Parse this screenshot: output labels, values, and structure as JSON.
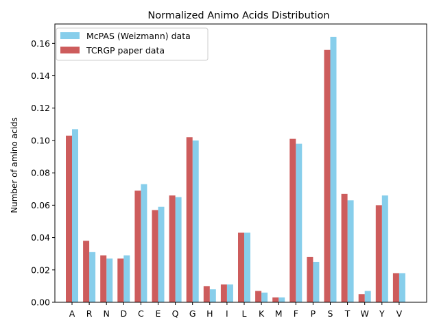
{
  "chart_data": {
    "type": "bar",
    "title": "Normalized Animo Acids Distribution",
    "xlabel": "",
    "ylabel": "Number of amino acids",
    "ylim": [
      0,
      0.172
    ],
    "yticks": [
      0.0,
      0.02,
      0.04,
      0.06,
      0.08,
      0.1,
      0.12,
      0.14,
      0.16
    ],
    "ytick_labels": [
      "0.00",
      "0.02",
      "0.04",
      "0.06",
      "0.08",
      "0.10",
      "0.12",
      "0.14",
      "0.16"
    ],
    "grid": false,
    "legend_position": "top-left",
    "categories": [
      "A",
      "R",
      "N",
      "D",
      "C",
      "E",
      "Q",
      "G",
      "H",
      "I",
      "L",
      "K",
      "M",
      "F",
      "P",
      "S",
      "T",
      "W",
      "Y",
      "V"
    ],
    "series": [
      {
        "name": "McPAS (Weizmann) data",
        "color": "#87ceeb",
        "values": [
          0.107,
          0.031,
          0.027,
          0.029,
          0.073,
          0.059,
          0.065,
          0.1,
          0.008,
          0.011,
          0.043,
          0.006,
          0.003,
          0.098,
          0.025,
          0.164,
          0.063,
          0.007,
          0.066,
          0.018
        ]
      },
      {
        "name": "TCRGP paper data",
        "color": "#cd5c5c",
        "values": [
          0.103,
          0.038,
          0.029,
          0.027,
          0.069,
          0.057,
          0.066,
          0.102,
          0.01,
          0.011,
          0.043,
          0.007,
          0.003,
          0.101,
          0.028,
          0.156,
          0.067,
          0.005,
          0.06,
          0.018
        ]
      }
    ]
  }
}
